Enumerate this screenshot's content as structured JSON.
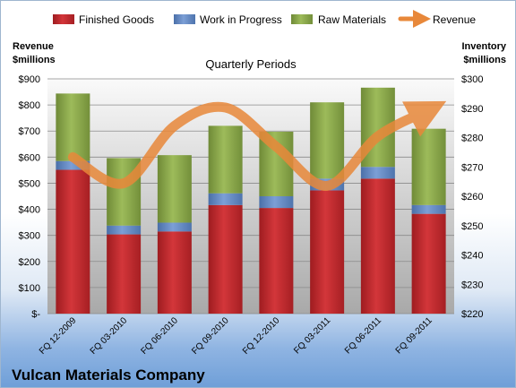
{
  "chart_data": {
    "type": "bar",
    "title": "Quarterly Periods",
    "company": "Vulcan Materials Company",
    "left_axis_label": [
      "Revenue",
      "$millions"
    ],
    "right_axis_label": [
      "Inventory",
      "$millions"
    ],
    "categories": [
      "FQ 12-2009",
      "FQ 03-2010",
      "FQ 06-2010",
      "FQ 09-2010",
      "FQ 12-2010",
      "FQ 03-2011",
      "FQ 06-2011",
      "FQ 09-2011"
    ],
    "stacked": true,
    "series": [
      {
        "name": "Finished Goods",
        "values": [
          269,
          247,
          248,
          257,
          256,
          262,
          266,
          254
        ],
        "axis": "right",
        "color": "#c0282d"
      },
      {
        "name": "Work in Progress",
        "values": [
          3,
          3,
          3,
          4,
          4,
          4,
          4,
          3
        ],
        "axis": "right",
        "color": "#5d87c6"
      },
      {
        "name": "Raw Materials",
        "values": [
          23,
          23,
          23,
          23,
          22,
          26,
          27,
          26
        ],
        "axis": "right",
        "color": "#8aa84a"
      },
      {
        "name": "Revenue",
        "type": "line",
        "values": [
          600,
          500,
          720,
          790,
          640,
          490,
          680,
          780
        ],
        "axis": "left",
        "color": "#e8883a"
      }
    ],
    "left_axis": {
      "min": 0,
      "max": 900,
      "step": 100,
      "tick_labels": [
        "$-",
        "$100",
        "$200",
        "$300",
        "$400",
        "$500",
        "$600",
        "$700",
        "$800",
        "$900"
      ]
    },
    "right_axis": {
      "min": 220,
      "max": 300,
      "step": 10,
      "tick_labels": [
        "$220",
        "$230",
        "$240",
        "$250",
        "$260",
        "$270",
        "$280",
        "$290",
        "$300"
      ]
    },
    "legend_position": "top",
    "grid": true
  }
}
